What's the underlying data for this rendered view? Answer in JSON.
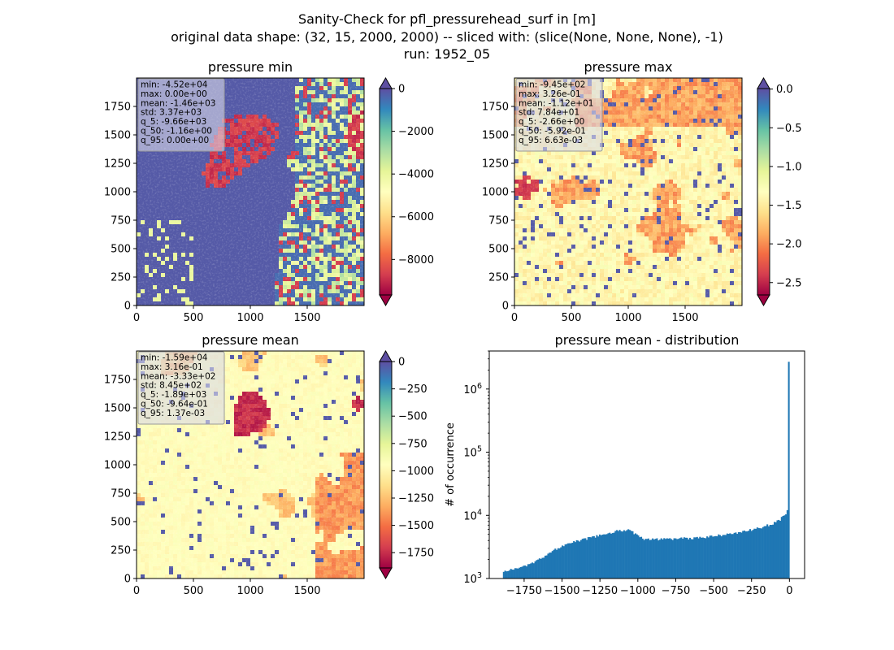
{
  "figure": {
    "title_lines": [
      "Sanity-Check for pfl_pressurehead_surf in [m]",
      "original data shape: (32, 15, 2000, 2000) -- sliced with: (slice(None, None, None), -1)",
      "run: 1952_05"
    ]
  },
  "colors": {
    "spectral": [
      "#9e0142",
      "#d53e4f",
      "#f46d43",
      "#fdae61",
      "#fee08b",
      "#ffffbf",
      "#e6f598",
      "#abdda4",
      "#66c2a5",
      "#3288bd",
      "#5e4fa2"
    ],
    "histogram_bar": "#1f77b4",
    "stats_box_bg": "#d8d8e8",
    "stats_box_border": "#999999"
  },
  "chart_data": [
    {
      "type": "heatmap",
      "title": "pressure min",
      "colormap": "Spectral",
      "xlim": [
        0,
        2000
      ],
      "ylim": [
        0,
        2000
      ],
      "x_ticks": [
        0,
        500,
        1000,
        1500
      ],
      "y_ticks": [
        0,
        250,
        500,
        750,
        1000,
        1250,
        1500,
        1750
      ],
      "colorbar": {
        "range": [
          -9661,
          0
        ],
        "ticks": [
          0,
          -2000,
          -4000,
          -6000,
          -8000
        ],
        "tick_labels": [
          "0",
          "−2000",
          "−4000",
          "−6000",
          "−8000"
        ],
        "extend_top": true,
        "extend_bottom": true
      },
      "stats": [
        "min: -4.52e+04",
        "max: 0.00e+00",
        "mean: -1.46e+03",
        "std: 3.37e+03",
        "q_5: -9.66e+03",
        "q_50: -1.16e+00",
        "q_95: 0.00e+00"
      ]
    },
    {
      "type": "heatmap",
      "title": "pressure max",
      "colormap": "Spectral",
      "xlim": [
        0,
        2000
      ],
      "ylim": [
        0,
        2000
      ],
      "x_ticks": [
        0,
        500,
        1000,
        1500
      ],
      "y_ticks": [
        0,
        250,
        500,
        750,
        1000,
        1250,
        1500,
        1750
      ],
      "colorbar": {
        "range": [
          -2.66,
          0.0066
        ],
        "ticks": [
          0.0,
          -0.5,
          -1.0,
          -1.5,
          -2.0,
          -2.5
        ],
        "tick_labels": [
          "0.0",
          "−0.5",
          "−1.0",
          "−1.5",
          "−2.0",
          "−2.5"
        ],
        "extend_top": true,
        "extend_bottom": true
      },
      "stats": [
        "min: -9.45e+02",
        "max: 3.26e-01",
        "mean: -1.12e+01",
        "std: 7.84e+01",
        "q_5: -2.66e+00",
        "q_50: -5.92e-01",
        "q_95: 6.63e-03"
      ]
    },
    {
      "type": "heatmap",
      "title": "pressure mean",
      "colormap": "Spectral",
      "xlim": [
        0,
        2000
      ],
      "ylim": [
        0,
        2000
      ],
      "x_ticks": [
        0,
        500,
        1000,
        1500
      ],
      "y_ticks": [
        0,
        250,
        500,
        750,
        1000,
        1250,
        1500,
        1750
      ],
      "colorbar": {
        "range": [
          -1890,
          0
        ],
        "ticks": [
          0,
          -250,
          -500,
          -750,
          -1000,
          -1250,
          -1500,
          -1750
        ],
        "tick_labels": [
          "0",
          "−250",
          "−500",
          "−750",
          "−1000",
          "−1250",
          "−1500",
          "−1750"
        ],
        "extend_top": true,
        "extend_bottom": true
      },
      "stats": [
        "min: -1.59e+04",
        "max: 3.16e-01",
        "mean: -3.33e+02",
        "std: 8.45e+02",
        "q_5: -1.89e+03",
        "q_50: -9.64e-01",
        "q_95: 1.37e-03"
      ]
    },
    {
      "type": "bar",
      "title": "pressure mean - distribution",
      "ylabel": "# of occurrence",
      "yscale": "log",
      "xlim": [
        -1980,
        100
      ],
      "ylim": [
        1000,
        4000000
      ],
      "x_ticks": [
        -1750,
        -1500,
        -1250,
        -1000,
        -750,
        -500,
        -250,
        0
      ],
      "x_tick_labels": [
        "−1750",
        "−1500",
        "−1250",
        "−1000",
        "−750",
        "−500",
        "−250",
        "0"
      ],
      "y_ticks": [
        1000,
        10000,
        100000,
        1000000
      ],
      "y_tick_labels": [
        "10^3",
        "10^4",
        "10^5",
        "10^6"
      ],
      "bin_profile": {
        "x": [
          -1890,
          -1800,
          -1700,
          -1600,
          -1500,
          -1400,
          -1300,
          -1200,
          -1130,
          -1060,
          -1000,
          -950,
          -900,
          -800,
          -700,
          -600,
          -500,
          -400,
          -300,
          -200,
          -120,
          -60,
          -20,
          -8,
          -4,
          -1
        ],
        "count": [
          1300,
          1450,
          1700,
          2400,
          3300,
          3900,
          4500,
          5100,
          5700,
          5900,
          4700,
          4100,
          4200,
          4200,
          4300,
          4400,
          4700,
          5000,
          5500,
          6300,
          7200,
          8600,
          11000,
          14000,
          19000,
          2700000
        ]
      }
    }
  ]
}
